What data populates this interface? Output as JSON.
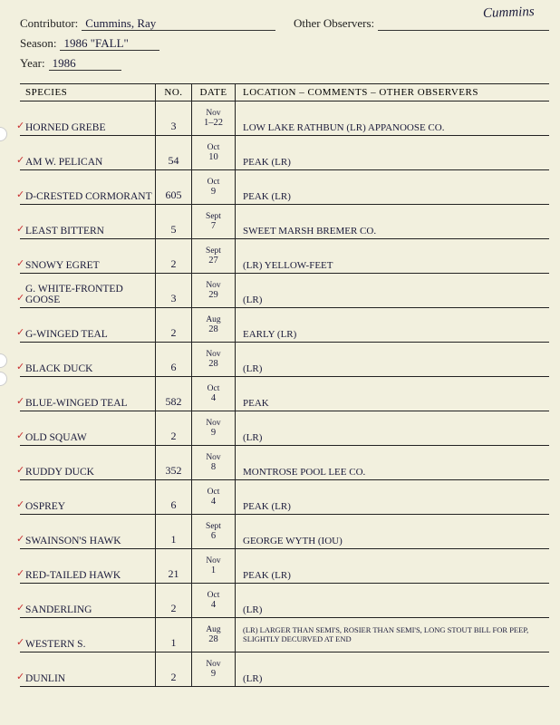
{
  "corner_name": "Cummins",
  "header": {
    "contributor_label": "Contributor:",
    "contributor_value": "Cummins, Ray",
    "other_obs_label": "Other Observers:",
    "other_obs_value": "",
    "season_label": "Season:",
    "season_value": "1986 \"FALL\"",
    "year_label": "Year:",
    "year_value": "1986"
  },
  "columns": {
    "species": "SPECIES",
    "no": "NO.",
    "date": "DATE",
    "loc": "LOCATION – COMMENTS – OTHER OBSERVERS"
  },
  "rows": [
    {
      "species": "Horned Grebe",
      "no": "3",
      "month": "Nov",
      "day": "1–22",
      "loc": "Low   Lake Rathbun (LR) Appanoose Co."
    },
    {
      "species": "Am W. Pelican",
      "no": "54",
      "month": "Oct",
      "day": "10",
      "loc": "Peak (LR)"
    },
    {
      "species": "D-Crested Cormorant",
      "no": "605",
      "month": "Oct",
      "day": "9",
      "loc": "Peak (LR)"
    },
    {
      "species": "Least Bittern",
      "no": "5",
      "month": "Sept",
      "day": "7",
      "loc": "Sweet Marsh   Bremer Co."
    },
    {
      "species": "Snowy Egret",
      "no": "2",
      "month": "Sept",
      "day": "27",
      "loc": "(LR)  Yellow-feet"
    },
    {
      "species": "G. White-Fronted Goose",
      "no": "3",
      "month": "Nov",
      "day": "29",
      "loc": "(LR)"
    },
    {
      "species": "G-Winged Teal",
      "no": "2",
      "month": "Aug",
      "day": "28",
      "loc": "Early (LR)"
    },
    {
      "species": "Black Duck",
      "no": "6",
      "month": "Nov",
      "day": "28",
      "loc": "(LR)"
    },
    {
      "species": "Blue-Winged Teal",
      "no": "582",
      "month": "Oct",
      "day": "4",
      "loc": "Peak"
    },
    {
      "species": "Old Squaw",
      "no": "2",
      "month": "Nov",
      "day": "9",
      "loc": "(LR)"
    },
    {
      "species": "Ruddy Duck",
      "no": "352",
      "month": "Nov",
      "day": "8",
      "loc": "Montrose Pool  Lee Co."
    },
    {
      "species": "Osprey",
      "no": "6",
      "month": "Oct",
      "day": "4",
      "loc": "Peak (LR)"
    },
    {
      "species": "Swainson's Hawk",
      "no": "1",
      "month": "Sept",
      "day": "6",
      "loc": "George Wyth (IOU)"
    },
    {
      "species": "Red-Tailed Hawk",
      "no": "21",
      "month": "Nov",
      "day": "1",
      "loc": "Peak (LR)"
    },
    {
      "species": "Sanderling",
      "no": "2",
      "month": "Oct",
      "day": "4",
      "loc": "(LR)"
    },
    {
      "species": "Western S.",
      "no": "1",
      "month": "Aug",
      "day": "28",
      "loc": "(LR) Larger than semi's, rosier than semi's, long stout bill for peep, slightly decurved at end",
      "small": true
    },
    {
      "species": "Dunlin",
      "no": "2",
      "month": "Nov",
      "day": "9",
      "loc": "(LR)"
    }
  ]
}
